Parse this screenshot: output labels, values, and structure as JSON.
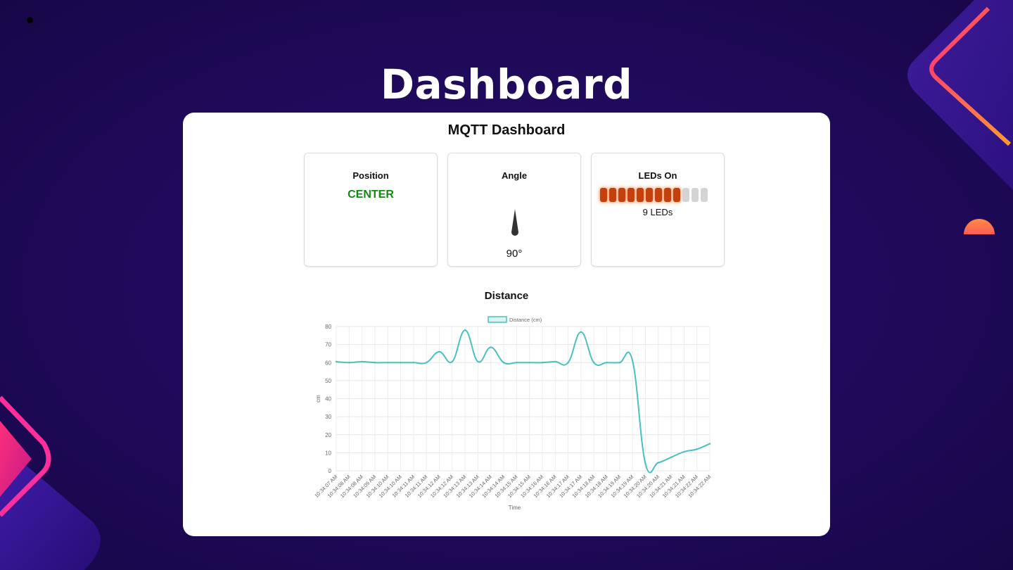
{
  "slide": {
    "title": "Dashboard"
  },
  "app": {
    "title": "MQTT Dashboard"
  },
  "cards": {
    "position": {
      "title": "Position",
      "value": "CENTER",
      "value_color": "#128a12"
    },
    "angle": {
      "title": "Angle",
      "value": "90°",
      "needle_icon": "needle-icon"
    },
    "leds": {
      "title": "LEDs On",
      "on": 9,
      "total": 12,
      "label": "9 LEDs",
      "on_color": "#c2410c",
      "off_color": "#d4d4d4"
    }
  },
  "distance": {
    "section_title": "Distance",
    "chart_data": {
      "type": "line",
      "title": "",
      "xlabel": "Time",
      "ylabel": "cm",
      "ylim": [
        0,
        80
      ],
      "yticks": [
        0,
        10,
        20,
        30,
        40,
        50,
        60,
        70,
        80
      ],
      "grid": true,
      "legend": "top-center",
      "x": [
        "10:34:07 AM",
        "10:34:08 AM",
        "10:34:08 AM",
        "10:34:09 AM",
        "10:34:10 AM",
        "10:34:10 AM",
        "10:34:11 AM",
        "10:34:11 AM",
        "10:34:12 AM",
        "10:34:12 AM",
        "10:34:13 AM",
        "10:34:13 AM",
        "10:34:14 AM",
        "10:34:14 AM",
        "10:34:15 AM",
        "10:34:15 AM",
        "10:34:16 AM",
        "10:34:16 AM",
        "10:34:17 AM",
        "10:34:17 AM",
        "10:34:18 AM",
        "10:34:18 AM",
        "10:34:19 AM",
        "10:34:19 AM",
        "10:34:20 AM",
        "10:34:20 AM",
        "10:34:21 AM",
        "10:34:21 AM",
        "10:34:22 AM",
        "10:34:22 AM"
      ],
      "series": [
        {
          "name": "Distance (cm)",
          "color": "#4bc0c0",
          "values": [
            60.5,
            60,
            60.5,
            60,
            60,
            60,
            60,
            60,
            66,
            60.5,
            78,
            60.5,
            68.5,
            60,
            60,
            60,
            60,
            60.5,
            60,
            77,
            60,
            60,
            60,
            61,
            4,
            4.5,
            7.5,
            10.5,
            12,
            15
          ]
        }
      ]
    }
  }
}
